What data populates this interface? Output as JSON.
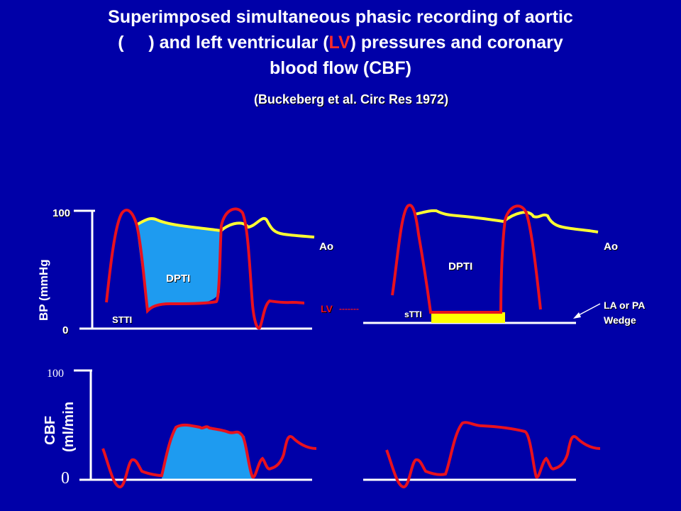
{
  "title": {
    "line1": "Superimposed simultaneous phasic recording of aortic",
    "line2_open": "(",
    "line2_gap": "     ",
    "line2_mid": ") and left ventricular (",
    "line2_lv": "LV",
    "line2_end": ") pressures and coronary",
    "line3": "blood flow (CBF)"
  },
  "citation": "(Buckeberg et al. Circ Res 1972)",
  "top_left": {
    "ylabel": "BP (mmHg",
    "tick_100": "100",
    "tick_0": "0",
    "dpti": "DPTI",
    "stti": "STTI",
    "ao": "Ao",
    "lv": "LV",
    "lv_dashes": "-------"
  },
  "top_right": {
    "dpti": "DPTI",
    "stti": "sTTI",
    "ao": "Ao",
    "wedge_line1": "LA or PA",
    "wedge_line2": "Wedge"
  },
  "bottom_left": {
    "ylabel_line1": "CBF",
    "ylabel_line2": "(ml/min",
    "tick_100": "100",
    "tick_0": "0"
  },
  "colors": {
    "background": "#0000a8",
    "aortic": "#ffff33",
    "lv": "#e8111e",
    "fill": "#1e9bf0",
    "yellow_bar": "#ffff00"
  }
}
